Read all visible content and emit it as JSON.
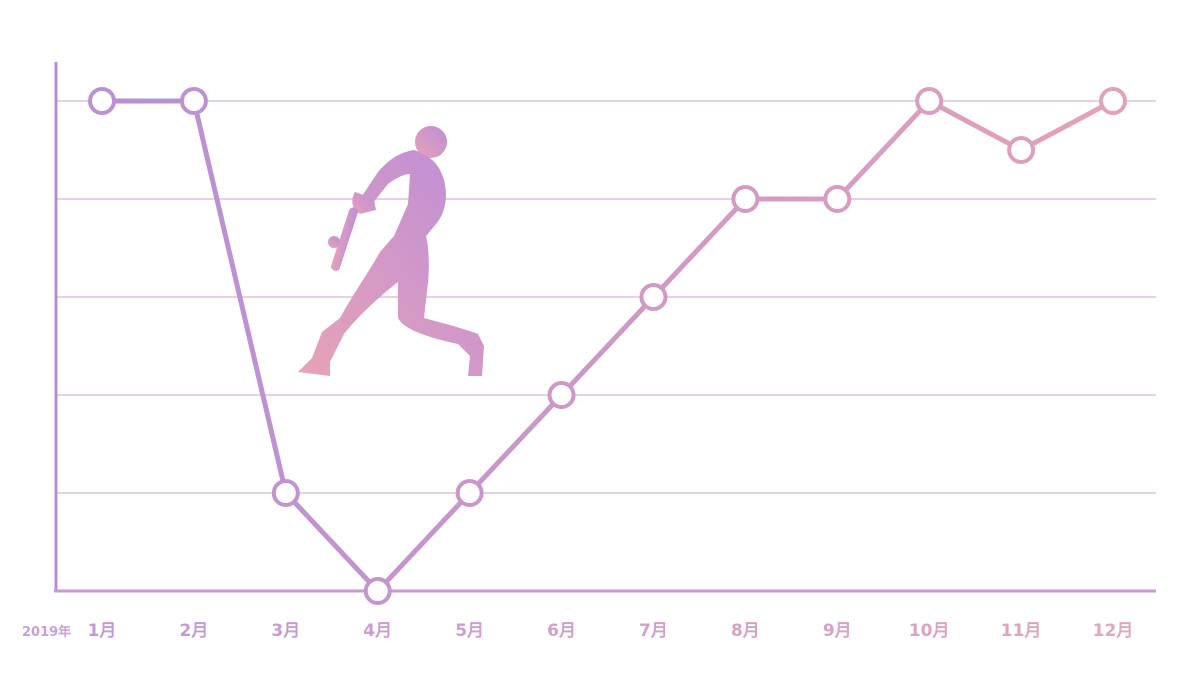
{
  "chart_data": {
    "type": "line",
    "year_prefix": "2019年",
    "categories": [
      "1月",
      "2月",
      "3月",
      "4月",
      "5月",
      "6月",
      "7月",
      "8月",
      "9月",
      "10月",
      "11月",
      "12月"
    ],
    "series": [
      {
        "values": [
          5,
          5,
          1,
          0,
          1,
          2,
          3,
          4,
          4,
          5,
          4.5,
          5
        ]
      }
    ],
    "ylim": [
      0,
      5
    ],
    "y_gridlines": [
      1,
      2,
      3,
      4,
      5
    ],
    "y_tick_labels_shown": false,
    "grid": true,
    "line_gradient": [
      "#b78fd6",
      "#e4a2b9"
    ]
  },
  "decoration": {
    "icon": "baseball-batter-silhouette-icon"
  }
}
